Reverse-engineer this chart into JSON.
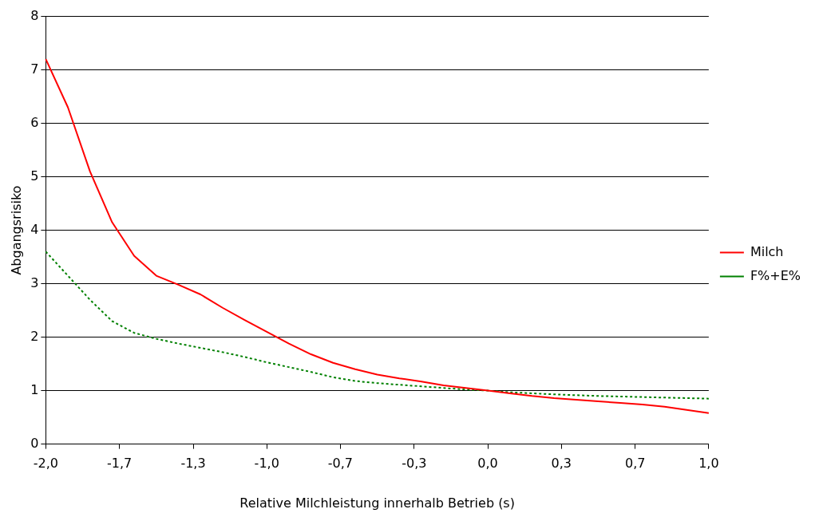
{
  "chart_data": {
    "type": "line",
    "xlabel": "Relative Milchleistung innerhalb Betrieb (s)",
    "ylabel": "Abgangsrisiko",
    "xlim": [
      -2,
      1
    ],
    "xticks": [
      {
        "value": -2,
        "label": "-2,0"
      },
      {
        "value": -1.667,
        "label": "-1,7"
      },
      {
        "value": -1.333,
        "label": "-1,3"
      },
      {
        "value": -1,
        "label": "-1,0"
      },
      {
        "value": -0.667,
        "label": "-0,7"
      },
      {
        "value": -0.333,
        "label": "-0,3"
      },
      {
        "value": 0,
        "label": "0,0"
      },
      {
        "value": 0.333,
        "label": "0,3"
      },
      {
        "value": 0.667,
        "label": "0,7"
      },
      {
        "value": 1,
        "label": "1,0"
      }
    ],
    "ylim": [
      0,
      8
    ],
    "yticks": [
      0,
      1,
      2,
      3,
      4,
      5,
      6,
      7,
      8
    ],
    "grid": "y",
    "legend": "right",
    "marker": "none",
    "series": [
      {
        "name": "Milch",
        "color": "#ff0000",
        "line_style": "solid",
        "x": [
          -2,
          -1.9,
          -1.8,
          -1.7,
          -1.6,
          -1.5,
          -1.4,
          -1.3,
          -1.2,
          -1.1,
          -1,
          -0.9,
          -0.8,
          -0.7,
          -0.6,
          -0.5,
          -0.4,
          -0.3,
          -0.2,
          -0.1,
          0,
          0.1,
          0.2,
          0.3,
          0.4,
          0.5,
          0.6,
          0.7,
          0.8,
          0.9,
          1
        ],
        "values": [
          7.2,
          6.3,
          5.1,
          4.15,
          3.52,
          3.15,
          2.98,
          2.8,
          2.55,
          2.32,
          2.1,
          1.88,
          1.68,
          1.52,
          1.4,
          1.3,
          1.23,
          1.17,
          1.1,
          1.05,
          1.0,
          0.95,
          0.9,
          0.86,
          0.83,
          0.8,
          0.77,
          0.74,
          0.7,
          0.64,
          0.58
        ]
      },
      {
        "name": "F%+E%",
        "color": "#008000",
        "line_style": "dotted",
        "x": [
          -2,
          -1.9,
          -1.8,
          -1.7,
          -1.6,
          -1.5,
          -1.4,
          -1.3,
          -1.2,
          -1.1,
          -1,
          -0.9,
          -0.8,
          -0.7,
          -0.6,
          -0.5,
          -0.4,
          -0.3,
          -0.2,
          -0.1,
          0,
          0.1,
          0.3,
          0.5,
          0.7,
          1
        ],
        "values": [
          3.6,
          3.15,
          2.7,
          2.3,
          2.08,
          1.97,
          1.88,
          1.8,
          1.72,
          1.63,
          1.53,
          1.44,
          1.35,
          1.25,
          1.18,
          1.14,
          1.11,
          1.08,
          1.05,
          1.02,
          1.0,
          0.97,
          0.93,
          0.9,
          0.88,
          0.85
        ]
      }
    ]
  }
}
